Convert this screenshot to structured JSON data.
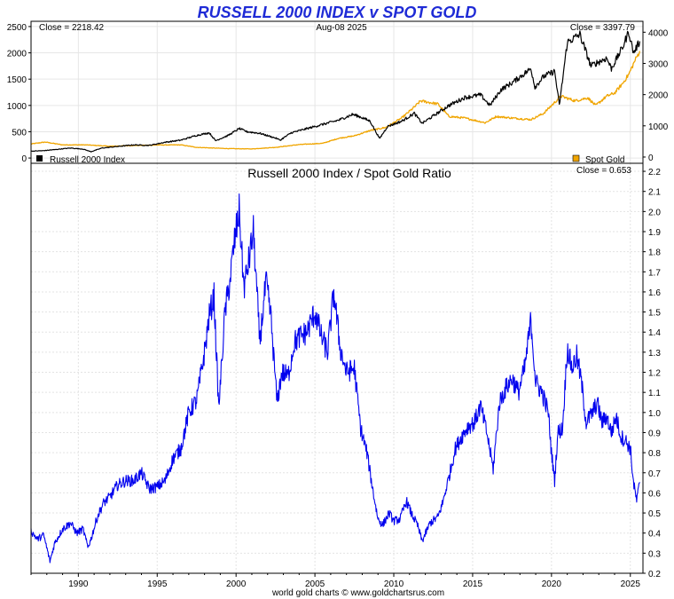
{
  "title": "RUSSELL 2000 INDEX v SPOT GOLD",
  "footer": "world gold charts © www.goldchartsrus.com",
  "colors": {
    "title": "#1f2bd6",
    "russell": "#000000",
    "gold": "#f0a500",
    "ratio": "#0000ee"
  },
  "chart_data": [
    {
      "type": "line",
      "panel": "top",
      "date_label": "Aug-08  2025",
      "left_axis": {
        "ylim": [
          -100,
          2600
        ],
        "ticks": [
          0,
          500,
          1000,
          1500,
          2000,
          2500
        ]
      },
      "right_axis": {
        "ylim": [
          -200,
          4350
        ],
        "ticks": [
          0,
          1000,
          2000,
          3000,
          4000
        ]
      },
      "series": [
        {
          "name": "Russell 2000 Index",
          "axis": "left",
          "close_label": "Close = 2218.42",
          "x": [
            1987.0,
            1987.8,
            1988.5,
            1989.5,
            1990.3,
            1990.8,
            1991.5,
            1992.5,
            1993.5,
            1994.5,
            1995.5,
            1996.5,
            1997.5,
            1998.3,
            1998.7,
            1999.5,
            2000.2,
            2000.7,
            2001.5,
            2002.5,
            2002.8,
            2003.5,
            2004.5,
            2005.5,
            2006.5,
            2007.4,
            2007.9,
            2008.5,
            2009.1,
            2009.6,
            2010.5,
            2011.3,
            2011.8,
            2012.5,
            2013.5,
            2014.5,
            2015.5,
            2016.1,
            2016.8,
            2017.5,
            2018.7,
            2018.95,
            2019.5,
            2020.2,
            2020.5,
            2021.0,
            2021.8,
            2022.5,
            2022.8,
            2023.5,
            2023.8,
            2024.5,
            2024.9,
            2025.2,
            2025.6
          ],
          "y": [
            130,
            140,
            160,
            190,
            170,
            120,
            190,
            220,
            250,
            240,
            300,
            340,
            430,
            480,
            330,
            430,
            560,
            500,
            470,
            380,
            340,
            480,
            560,
            640,
            720,
            830,
            780,
            700,
            370,
            600,
            700,
            850,
            660,
            800,
            1000,
            1150,
            1200,
            1000,
            1300,
            1430,
            1700,
            1350,
            1550,
            1650,
            1000,
            2200,
            2350,
            1750,
            1800,
            1900,
            1700,
            2100,
            2400,
            2000,
            2220
          ]
        },
        {
          "name": "Spot Gold",
          "axis": "right",
          "close_label": "Close = 3397.79",
          "x": [
            1987.0,
            1987.9,
            1989.0,
            1990.5,
            1992.0,
            1993.5,
            1995.0,
            1996.5,
            1997.5,
            1999.5,
            2001.0,
            2002.5,
            2004.0,
            2005.5,
            2006.5,
            2007.5,
            2008.5,
            2009.5,
            2010.5,
            2011.3,
            2011.7,
            2012.8,
            2013.5,
            2014.5,
            2015.8,
            2016.5,
            2017.5,
            2018.7,
            2019.5,
            2020.6,
            2021.5,
            2022.3,
            2022.8,
            2023.5,
            2024.0,
            2024.5,
            2024.9,
            2025.3,
            2025.6
          ],
          "y": [
            420,
            480,
            390,
            390,
            345,
            370,
            385,
            390,
            310,
            270,
            260,
            310,
            400,
            440,
            600,
            680,
            850,
            950,
            1250,
            1600,
            1800,
            1700,
            1300,
            1250,
            1100,
            1300,
            1250,
            1200,
            1400,
            1950,
            1800,
            1900,
            1650,
            1950,
            2050,
            2350,
            2650,
            3100,
            3398
          ]
        }
      ]
    },
    {
      "type": "line",
      "panel": "bottom",
      "title": "Russell 2000 Index  /  Spot Gold Ratio",
      "close_label": "Close = 0.653",
      "xlim": [
        1987.0,
        2025.8
      ],
      "ylim": [
        0.2,
        2.24
      ],
      "x_ticks": [
        1990,
        1995,
        2000,
        2005,
        2010,
        2015,
        2020,
        2025
      ],
      "y_ticks": [
        0.2,
        0.3,
        0.4,
        0.5,
        0.6,
        0.7,
        0.8,
        0.9,
        1.0,
        1.1,
        1.2,
        1.3,
        1.4,
        1.5,
        1.6,
        1.7,
        1.8,
        1.9,
        2.0,
        2.1,
        2.2
      ],
      "series": [
        {
          "x": [
            1987.0,
            1987.4,
            1987.8,
            1988.2,
            1988.5,
            1989.0,
            1989.5,
            1989.9,
            1990.3,
            1990.6,
            1990.8,
            1991.2,
            1991.6,
            1992.0,
            1992.5,
            1993.0,
            1993.5,
            1994.0,
            1994.5,
            1995.0,
            1995.5,
            1996.0,
            1996.5,
            1997.0,
            1997.5,
            1998.0,
            1998.3,
            1998.6,
            1998.9,
            1999.3,
            1999.6,
            1999.9,
            2000.2,
            2000.5,
            2000.8,
            2001.1,
            2001.5,
            2001.9,
            2002.2,
            2002.6,
            2002.9,
            2003.3,
            2003.7,
            2004.1,
            2004.5,
            2005.0,
            2005.4,
            2005.8,
            2006.2,
            2006.6,
            2007.0,
            2007.5,
            2007.9,
            2008.3,
            2008.7,
            2009.0,
            2009.3,
            2009.7,
            2010.0,
            2010.4,
            2010.8,
            2011.1,
            2011.5,
            2011.8,
            2012.3,
            2012.8,
            2013.1,
            2013.5,
            2013.9,
            2014.3,
            2014.7,
            2015.1,
            2015.5,
            2015.9,
            2016.3,
            2016.7,
            2017.1,
            2017.5,
            2017.9,
            2018.3,
            2018.7,
            2019.0,
            2019.4,
            2019.8,
            2020.0,
            2020.2,
            2020.4,
            2020.7,
            2021.0,
            2021.3,
            2021.6,
            2021.9,
            2022.2,
            2022.6,
            2022.9,
            2023.2,
            2023.5,
            2023.8,
            2024.1,
            2024.4,
            2024.7,
            2025.0,
            2025.2,
            2025.4,
            2025.6
          ],
          "y": [
            0.41,
            0.37,
            0.39,
            0.26,
            0.35,
            0.42,
            0.45,
            0.4,
            0.42,
            0.33,
            0.37,
            0.48,
            0.55,
            0.58,
            0.64,
            0.66,
            0.66,
            0.7,
            0.62,
            0.63,
            0.66,
            0.77,
            0.82,
            1.0,
            1.06,
            1.3,
            1.48,
            1.58,
            1.02,
            1.5,
            1.65,
            1.85,
            2.0,
            1.62,
            1.75,
            1.9,
            1.35,
            1.65,
            1.48,
            1.05,
            1.2,
            1.18,
            1.35,
            1.38,
            1.4,
            1.5,
            1.38,
            1.3,
            1.6,
            1.32,
            1.2,
            1.22,
            0.92,
            0.8,
            0.6,
            0.47,
            0.44,
            0.5,
            0.46,
            0.47,
            0.56,
            0.5,
            0.44,
            0.36,
            0.45,
            0.48,
            0.55,
            0.68,
            0.82,
            0.88,
            0.93,
            0.95,
            1.03,
            0.9,
            0.72,
            1.05,
            1.12,
            1.17,
            1.1,
            1.22,
            1.46,
            1.15,
            1.1,
            1.0,
            0.8,
            0.66,
            0.9,
            0.92,
            1.32,
            1.22,
            1.28,
            1.15,
            0.95,
            1.0,
            1.05,
            0.95,
            0.98,
            0.9,
            0.98,
            0.88,
            0.86,
            0.82,
            0.65,
            0.56,
            0.653
          ]
        }
      ]
    }
  ]
}
